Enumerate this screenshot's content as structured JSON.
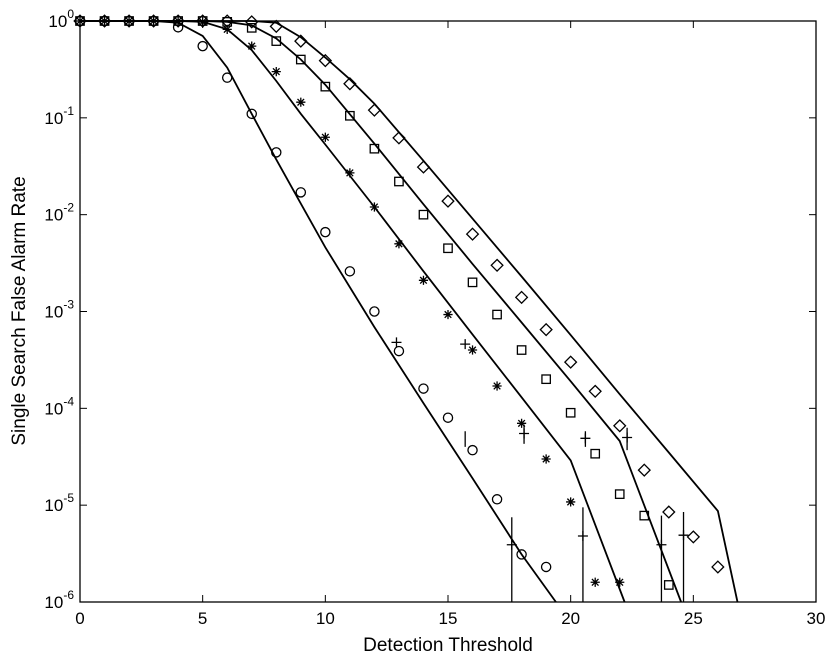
{
  "chart_data": {
    "type": "scatter",
    "title": "",
    "xlabel": "Detection Threshold",
    "ylabel": "Single Search False Alarm Rate",
    "xlim": [
      0,
      30
    ],
    "ylim": [
      1e-06,
      1
    ],
    "yscale": "log",
    "grid": false,
    "x_ticks": [
      0,
      5,
      10,
      15,
      20,
      25,
      30
    ],
    "y_ticks": [
      {
        "value": 1,
        "base": "10",
        "exp": "0"
      },
      {
        "value": 0.1,
        "base": "10",
        "exp": "-1"
      },
      {
        "value": 0.01,
        "base": "10",
        "exp": "-2"
      },
      {
        "value": 0.001,
        "base": "10",
        "exp": "-3"
      },
      {
        "value": 0.0001,
        "base": "10",
        "exp": "-4"
      },
      {
        "value": 1e-05,
        "base": "10",
        "exp": "-5"
      },
      {
        "value": 1e-06,
        "base": "10",
        "exp": "-6"
      }
    ],
    "series": [
      {
        "marker": "circle",
        "x": [
          0,
          1,
          2,
          3,
          4,
          5,
          6,
          7,
          8,
          9,
          10,
          11,
          12,
          13,
          14,
          15,
          16,
          17,
          18,
          19
        ],
        "y": [
          1,
          1,
          1,
          1,
          0.86,
          0.55,
          0.26,
          0.11,
          0.044,
          0.017,
          0.0066,
          0.0026,
          0.001,
          0.00039,
          0.00016,
          8e-05,
          3.7e-05,
          1.15e-05,
          3.1e-06,
          2.3e-06
        ]
      },
      {
        "marker": "asterisk",
        "x": [
          0,
          1,
          2,
          3,
          4,
          5,
          6,
          7,
          8,
          9,
          10,
          11,
          12,
          13,
          14,
          15,
          16,
          17,
          18,
          19,
          20,
          21,
          22
        ],
        "y": [
          1,
          1,
          1,
          1,
          1,
          0.98,
          0.82,
          0.55,
          0.3,
          0.145,
          0.063,
          0.027,
          0.012,
          0.005,
          0.0021,
          0.00093,
          0.0004,
          0.00017,
          7e-05,
          3e-05,
          1.08e-05,
          1.6e-06,
          1.6e-06
        ]
      },
      {
        "marker": "square",
        "x": [
          0,
          1,
          2,
          3,
          4,
          5,
          6,
          7,
          8,
          9,
          10,
          11,
          12,
          13,
          14,
          15,
          16,
          17,
          18,
          19,
          20,
          21,
          22,
          23,
          24
        ],
        "y": [
          1,
          1,
          1,
          1,
          1,
          1,
          0.98,
          0.85,
          0.62,
          0.4,
          0.21,
          0.105,
          0.048,
          0.022,
          0.01,
          0.0045,
          0.002,
          0.00093,
          0.0004,
          0.0002,
          9e-05,
          3.4e-05,
          1.3e-05,
          7.8e-06,
          1.5e-06
        ]
      },
      {
        "marker": "diamond",
        "x": [
          0,
          1,
          2,
          3,
          4,
          5,
          6,
          7,
          8,
          9,
          10,
          11,
          12,
          13,
          14,
          15,
          16,
          17,
          18,
          19,
          20,
          21,
          22,
          23,
          24,
          25,
          26
        ],
        "y": [
          1,
          1,
          1,
          1,
          1,
          1,
          1,
          0.98,
          0.88,
          0.62,
          0.39,
          0.225,
          0.12,
          0.062,
          0.031,
          0.0138,
          0.0063,
          0.003,
          0.0014,
          0.00065,
          0.0003,
          0.00015,
          6.6e-05,
          2.3e-05,
          8.5e-06,
          4.7e-06,
          2.3e-06
        ]
      },
      {
        "marker": "plus",
        "x": [
          12.9,
          15.7,
          17.6,
          18.1,
          20.5,
          20.6,
          22.3,
          23.7,
          24.6
        ],
        "y": [
          0.00048,
          0.00046,
          3.9e-06,
          5.5e-05,
          4.8e-06,
          4.9e-05,
          5e-05,
          3.9e-06,
          4.9e-06
        ]
      }
    ],
    "error_bars": [
      {
        "x": 15.7,
        "y_low": 4e-05,
        "y_high": 5.8e-05
      },
      {
        "x": 17.6,
        "y_low": 1e-06,
        "y_high": 7.5e-06
      },
      {
        "x": 18.1,
        "y_low": 4.3e-05,
        "y_high": 6.8e-05
      },
      {
        "x": 20.5,
        "y_low": 1e-06,
        "y_high": 9.5e-06
      },
      {
        "x": 20.6,
        "y_low": 4e-05,
        "y_high": 5.8e-05
      },
      {
        "x": 22.3,
        "y_low": 3.7e-05,
        "y_high": 6.3e-05
      },
      {
        "x": 23.7,
        "y_low": 1e-06,
        "y_high": 7.8e-06
      },
      {
        "x": 24.6,
        "y_low": 1e-06,
        "y_high": 8.5e-06
      }
    ],
    "fit_curves": [
      {
        "x": [
          0,
          3,
          4,
          5,
          6,
          7,
          8,
          9,
          10,
          12,
          14,
          16,
          18,
          19.4
        ],
        "y": [
          1,
          1,
          0.96,
          0.7,
          0.33,
          0.11,
          0.037,
          0.013,
          0.0046,
          0.00069,
          0.000113,
          1.9e-05,
          3.1e-06,
          1e-06
        ]
      },
      {
        "x": [
          0,
          3,
          4,
          5,
          6,
          7,
          8,
          9,
          10,
          12,
          14,
          16,
          18,
          20,
          22.2
        ],
        "y": [
          1,
          1,
          1,
          0.98,
          0.82,
          0.5,
          0.24,
          0.11,
          0.053,
          0.012,
          0.0026,
          0.00058,
          0.00013,
          2.9e-05,
          1e-06
        ]
      },
      {
        "x": [
          0,
          5,
          6,
          7,
          8,
          9,
          10,
          12,
          14,
          16,
          18,
          20,
          22,
          24.5
        ],
        "y": [
          1,
          1,
          0.98,
          0.9,
          0.66,
          0.4,
          0.22,
          0.054,
          0.0128,
          0.0031,
          0.00077,
          0.00019,
          4.6e-05,
          1e-06
        ]
      },
      {
        "x": [
          0,
          6,
          7,
          8,
          9,
          10,
          11,
          12,
          14,
          16,
          18,
          20,
          22,
          24,
          26,
          26.8
        ],
        "y": [
          1,
          1,
          1,
          0.96,
          0.68,
          0.42,
          0.25,
          0.14,
          0.036,
          0.0091,
          0.0023,
          0.00057,
          0.00014,
          3.5e-05,
          8.7e-06,
          1e-06
        ]
      }
    ]
  }
}
